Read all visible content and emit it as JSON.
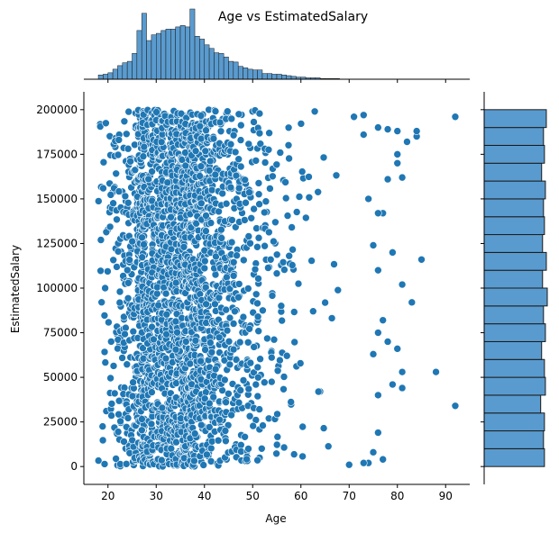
{
  "chart_data": {
    "type": "scatter",
    "title": "Age vs EstimatedSalary",
    "xlabel": "Age",
    "ylabel": "EstimatedSalary",
    "xlim": [
      15,
      95
    ],
    "ylim": [
      -10000,
      210000
    ],
    "x_ticks": [
      20,
      30,
      40,
      50,
      60,
      70,
      80,
      90
    ],
    "x_tick_labels": [
      "20",
      "30",
      "40",
      "50",
      "60",
      "70",
      "80",
      "90"
    ],
    "y_ticks": [
      0,
      25000,
      50000,
      75000,
      100000,
      125000,
      150000,
      175000,
      200000
    ],
    "y_tick_labels": [
      "0",
      "25000",
      "50000",
      "75000",
      "100000",
      "125000",
      "150000",
      "175000",
      "200000"
    ],
    "grid": false,
    "colors": {
      "marker": "#1f77b4",
      "marker_edge": "#ffffff",
      "hist_fill": "#5a9bcf",
      "hist_edge": "#1a1a1a",
      "axis": "#000000"
    },
    "age_histogram": {
      "bin_start": 18,
      "bin_width": 1,
      "counts": [
        6,
        7,
        9,
        14,
        19,
        23,
        25,
        36,
        68,
        92,
        54,
        62,
        64,
        68,
        70,
        70,
        73,
        75,
        73,
        98,
        60,
        56,
        48,
        43,
        37,
        36,
        31,
        25,
        24,
        18,
        16,
        14,
        13,
        13,
        8,
        8,
        7,
        7,
        6,
        5,
        4,
        3,
        3,
        2,
        2,
        2,
        1,
        1,
        1,
        1
      ]
    },
    "salary_histogram": {
      "bin_start": 0,
      "bin_width": 10000,
      "counts": [
        64,
        63,
        64,
        60,
        65,
        64,
        61,
        65,
        63,
        67,
        62,
        66,
        62,
        64,
        63,
        65,
        61,
        64,
        63,
        66
      ]
    },
    "outliers": [
      {
        "x": 92,
        "y": 196000
      },
      {
        "x": 92,
        "y": 34000
      },
      {
        "x": 88,
        "y": 53000
      },
      {
        "x": 85,
        "y": 116000
      },
      {
        "x": 83,
        "y": 92000
      },
      {
        "x": 84,
        "y": 185000
      },
      {
        "x": 84,
        "y": 188000
      },
      {
        "x": 82,
        "y": 182000
      },
      {
        "x": 80,
        "y": 188000
      },
      {
        "x": 80,
        "y": 175000
      },
      {
        "x": 80,
        "y": 170000
      },
      {
        "x": 81,
        "y": 162000
      },
      {
        "x": 81,
        "y": 102000
      },
      {
        "x": 81,
        "y": 53000
      },
      {
        "x": 81,
        "y": 44000
      },
      {
        "x": 80,
        "y": 66000
      },
      {
        "x": 78,
        "y": 189000
      },
      {
        "x": 78,
        "y": 161000
      },
      {
        "x": 78,
        "y": 70000
      },
      {
        "x": 77,
        "y": 142000
      },
      {
        "x": 77,
        "y": 82000
      },
      {
        "x": 77,
        "y": 4000
      },
      {
        "x": 79,
        "y": 120000
      },
      {
        "x": 79,
        "y": 46000
      },
      {
        "x": 76,
        "y": 190000
      },
      {
        "x": 76,
        "y": 142000
      },
      {
        "x": 76,
        "y": 110000
      },
      {
        "x": 76,
        "y": 75000
      },
      {
        "x": 76,
        "y": 40000
      },
      {
        "x": 76,
        "y": 19000
      },
      {
        "x": 75,
        "y": 8000
      },
      {
        "x": 75,
        "y": 124000
      },
      {
        "x": 75,
        "y": 63000
      },
      {
        "x": 74,
        "y": 150000
      },
      {
        "x": 74,
        "y": 2000
      },
      {
        "x": 73,
        "y": 2000
      },
      {
        "x": 70,
        "y": 1000
      },
      {
        "x": 71,
        "y": 196000
      },
      {
        "x": 73,
        "y": 186000
      },
      {
        "x": 73,
        "y": 197000
      }
    ]
  }
}
